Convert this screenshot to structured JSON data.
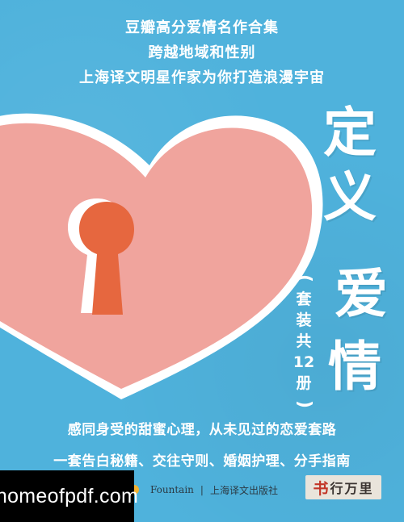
{
  "colors": {
    "background": "#4fb2dc",
    "heart": "#f0a49d",
    "keyhole": "#e6673f",
    "text": "#ffffff"
  },
  "top_lines": [
    "豆瓣高分爱情名作合集",
    "跨越地域和性别",
    "上海译文明星作家为你打造浪漫宇宙"
  ],
  "title": {
    "chars": [
      "定",
      "义",
      "爱",
      "情"
    ]
  },
  "set_note": {
    "open": "(",
    "chars": [
      "套",
      "装",
      "共",
      "12",
      "册"
    ],
    "close": ")"
  },
  "bottom_lines": [
    "感同身受的甜蜜心理，从未见过的恋爱套路",
    "一套告白秘籍、交往守则、婚姻护理、分手指南"
  ],
  "publisher": {
    "imprint": "Fountain",
    "separator": "|",
    "name": "上海译文出版社"
  },
  "brand": {
    "first_char": "书",
    "rest": "行万里"
  },
  "watermark": "homeofpdf.com"
}
